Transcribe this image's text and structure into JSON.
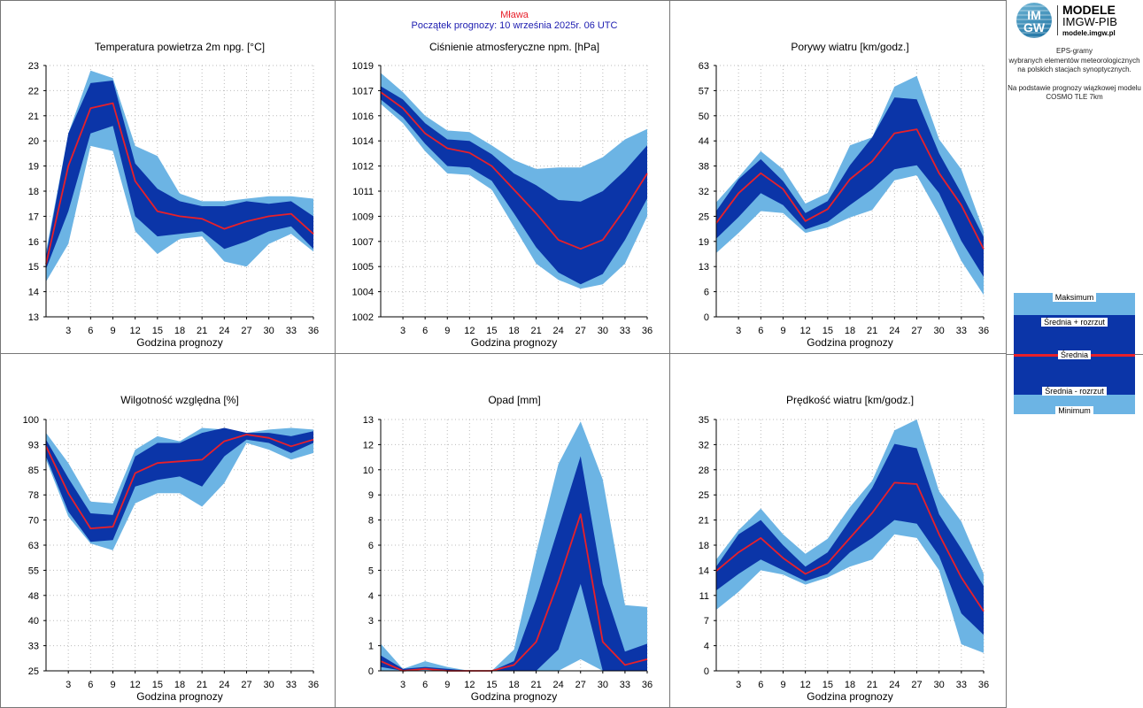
{
  "header": {
    "station": "Mława",
    "forecast_start": "Początek prognozy: 10 września 2025r. 06 UTC"
  },
  "logo": {
    "badge_top": "IM",
    "badge_bottom": "GW",
    "name_line1": "MODELE",
    "name_line2": "IMGW-PIB",
    "url": "modele.imgw.pl"
  },
  "info": {
    "line1": "EPS-gramy",
    "line2": "wybranych elementów meteorologicznych",
    "line3": "na polskich stacjach  synoptycznych.",
    "line4": "Na podstawie prognozy wiązkowej modelu",
    "line5": "COSMO TLE 7km"
  },
  "legend": {
    "max": "Maksimum",
    "mean_plus": "Średnia + rozrzut",
    "mean": "Średnia",
    "mean_minus": "Średnia - rozrzut",
    "min": "Minimum"
  },
  "colors": {
    "outer_band": "#6cb4e4",
    "inner_band": "#0b35a8",
    "mean_line": "#e8202a",
    "station_title": "#e8202a",
    "subtitle": "#1c1cb0",
    "grid": "#bbbbbb"
  },
  "chart_data": [
    {
      "type": "area",
      "title": "Temperatura powietrza 2m npg. [°C]",
      "xlabel": "Godzina prognozy",
      "x": [
        0,
        3,
        6,
        9,
        12,
        15,
        18,
        21,
        24,
        27,
        30,
        33,
        36
      ],
      "xticks": [
        "3",
        "6",
        "9",
        "12",
        "15",
        "18",
        "21",
        "24",
        "27",
        "30",
        "33",
        "36"
      ],
      "ylim": [
        13,
        23
      ],
      "yticks": [
        "13",
        "14",
        "15",
        "16",
        "17",
        "18",
        "19",
        "20",
        "21",
        "22",
        "23"
      ],
      "grid": true,
      "series": {
        "min": [
          14.4,
          15.9,
          19.8,
          19.6,
          16.4,
          15.5,
          16.1,
          16.2,
          15.2,
          15.0,
          15.9,
          16.3,
          15.6
        ],
        "mean_minus": [
          14.9,
          17.2,
          20.3,
          20.6,
          17.0,
          16.2,
          16.3,
          16.4,
          15.7,
          16.0,
          16.4,
          16.6,
          15.7
        ],
        "mean": [
          15.1,
          19.0,
          21.3,
          21.5,
          18.4,
          17.2,
          17.0,
          16.9,
          16.5,
          16.8,
          17.0,
          17.1,
          16.3
        ],
        "mean_plus": [
          15.4,
          20.3,
          22.3,
          22.4,
          19.1,
          18.1,
          17.6,
          17.4,
          17.4,
          17.6,
          17.5,
          17.6,
          17.0
        ],
        "max": [
          15.6,
          20.3,
          22.8,
          22.5,
          19.8,
          19.4,
          17.9,
          17.6,
          17.6,
          17.7,
          17.8,
          17.8,
          17.7
        ]
      }
    },
    {
      "type": "area",
      "title": "Ciśnienie atmosferyczne npm. [hPa]",
      "xlabel": "Godzina prognozy",
      "x": [
        0,
        3,
        6,
        9,
        12,
        15,
        18,
        21,
        24,
        27,
        30,
        33,
        36
      ],
      "xticks": [
        "3",
        "6",
        "9",
        "12",
        "15",
        "18",
        "21",
        "24",
        "27",
        "30",
        "33",
        "36"
      ],
      "ylim": [
        1002,
        1019
      ],
      "yticks": [
        "1002",
        "1004",
        "1005",
        "1007",
        "1009",
        "1011",
        "1012",
        "1014",
        "1016",
        "1017",
        "1019"
      ],
      "grid": true,
      "series": {
        "min": [
          1016.4,
          1015.1,
          1013.2,
          1011.7,
          1011.6,
          1010.6,
          1008.1,
          1005.6,
          1004.5,
          1003.9,
          1004.2,
          1005.6,
          1008.8
        ],
        "mean_minus": [
          1016.7,
          1015.5,
          1013.7,
          1012.2,
          1012.1,
          1011.2,
          1009.0,
          1006.7,
          1005.0,
          1004.2,
          1004.9,
          1007.2,
          1010.0
        ],
        "mean": [
          1017.2,
          1016.1,
          1014.4,
          1013.4,
          1013.1,
          1012.2,
          1010.6,
          1009.0,
          1007.2,
          1006.6,
          1007.2,
          1009.3,
          1011.7
        ],
        "mean_plus": [
          1017.6,
          1016.7,
          1015.1,
          1014.0,
          1013.9,
          1013.0,
          1011.7,
          1010.9,
          1009.9,
          1009.8,
          1010.5,
          1011.9,
          1013.6
        ],
        "max": [
          1018.5,
          1017.2,
          1015.6,
          1014.6,
          1014.5,
          1013.6,
          1012.6,
          1012.0,
          1012.1,
          1012.1,
          1012.8,
          1014.0,
          1014.7
        ]
      }
    },
    {
      "type": "area",
      "title": "Porywy wiatru [km/godz.]",
      "xlabel": "Godzina prognozy",
      "x": [
        0,
        3,
        6,
        9,
        12,
        15,
        18,
        21,
        24,
        27,
        30,
        33,
        36
      ],
      "xticks": [
        "3",
        "6",
        "9",
        "12",
        "15",
        "18",
        "21",
        "24",
        "27",
        "30",
        "33",
        "36"
      ],
      "ylim": [
        0,
        63
      ],
      "yticks": [
        "0",
        "6",
        "13",
        "19",
        "25",
        "32",
        "38",
        "44",
        "50",
        "57",
        "63"
      ],
      "grid": true,
      "series": {
        "min": [
          16.0,
          21.0,
          26.5,
          26.0,
          21.0,
          22.4,
          24.9,
          26.8,
          34.2,
          35.5,
          25.5,
          14.0,
          5.5
        ],
        "mean_minus": [
          19.6,
          25.0,
          31.0,
          28.0,
          21.9,
          23.8,
          28.0,
          32.0,
          37.0,
          38.0,
          31.0,
          19.0,
          10.0
        ],
        "mean": [
          23.5,
          31.0,
          36.0,
          32.0,
          24.0,
          27.0,
          34.5,
          39.0,
          46.0,
          47.0,
          36.0,
          28.0,
          17.0
        ],
        "mean_plus": [
          26.5,
          34.5,
          39.5,
          34.0,
          26.0,
          29.0,
          38.0,
          45.0,
          55.0,
          54.5,
          41.0,
          31.0,
          20.0
        ],
        "max": [
          28.7,
          35.0,
          41.5,
          37.0,
          28.4,
          31.0,
          43.0,
          45.0,
          57.7,
          60.4,
          44.5,
          37.0,
          21.5
        ]
      }
    },
    {
      "type": "area",
      "title": "Wilgotność względna [%]",
      "xlabel": "Godzina prognozy",
      "x": [
        0,
        3,
        6,
        9,
        12,
        15,
        18,
        21,
        24,
        27,
        30,
        33,
        36
      ],
      "xticks": [
        "3",
        "6",
        "9",
        "12",
        "15",
        "18",
        "21",
        "24",
        "27",
        "30",
        "33",
        "36"
      ],
      "ylim": [
        25,
        100
      ],
      "yticks": [
        "25",
        "33",
        "40",
        "48",
        "55",
        "63",
        "70",
        "78",
        "85",
        "93",
        "100"
      ],
      "grid": true,
      "series": {
        "min": [
          88.0,
          71.0,
          63.0,
          61.0,
          75.0,
          78.0,
          78.0,
          74.0,
          81.0,
          93.0,
          91.0,
          88.0,
          90.0
        ],
        "mean_minus": [
          89.0,
          72.5,
          63.5,
          64.0,
          80.0,
          82.0,
          83.0,
          80.0,
          89.0,
          94.0,
          93.0,
          90.0,
          93.0
        ],
        "mean": [
          92.0,
          78.0,
          67.5,
          68.0,
          84.0,
          87.0,
          87.5,
          88.0,
          93.5,
          95.5,
          94.5,
          92.0,
          94.0
        ],
        "mean_plus": [
          94.0,
          82.5,
          72.0,
          71.5,
          89.0,
          93.0,
          93.0,
          96.0,
          97.5,
          96.0,
          96.0,
          95.0,
          96.5
        ],
        "max": [
          96.0,
          87.0,
          75.5,
          75.0,
          91.0,
          95.0,
          93.5,
          97.5,
          97.0,
          96.0,
          97.0,
          97.5,
          97.0
        ]
      }
    },
    {
      "type": "area",
      "title": "Opad [mm]",
      "xlabel": "Godzina prognozy",
      "x": [
        0,
        3,
        6,
        9,
        12,
        15,
        18,
        21,
        24,
        27,
        30,
        33,
        36
      ],
      "xticks": [
        "3",
        "6",
        "9",
        "12",
        "15",
        "18",
        "21",
        "24",
        "27",
        "30",
        "33",
        "36"
      ],
      "ylim": [
        0,
        13
      ],
      "yticks": [
        "0",
        "1",
        "3",
        "4",
        "5",
        "6",
        "8",
        "9",
        "10",
        "12",
        "13"
      ],
      "grid": true,
      "series": {
        "min": [
          0.0,
          0.0,
          0.0,
          0.0,
          0.0,
          0.0,
          0.0,
          0.0,
          0.0,
          0.6,
          0.0,
          0.0,
          0.0
        ],
        "mean_minus": [
          0.2,
          0.0,
          0.1,
          0.0,
          0.0,
          0.0,
          0.0,
          0.0,
          1.1,
          4.5,
          0.0,
          0.0,
          0.0
        ],
        "mean": [
          0.5,
          0.0,
          0.1,
          0.0,
          0.0,
          0.0,
          0.3,
          1.5,
          4.6,
          8.1,
          1.5,
          0.3,
          0.6
        ],
        "mean_plus": [
          0.8,
          0.1,
          0.2,
          0.1,
          0.0,
          0.0,
          0.5,
          3.7,
          7.4,
          11.1,
          4.5,
          1.0,
          1.4
        ],
        "max": [
          1.4,
          0.1,
          0.5,
          0.2,
          0.0,
          0.0,
          1.1,
          6.1,
          10.7,
          12.9,
          9.9,
          3.4,
          3.3
        ]
      }
    },
    {
      "type": "area",
      "title": "Prędkość wiatru [km/godz.]",
      "xlabel": "Godzina prognozy",
      "x": [
        0,
        3,
        6,
        9,
        12,
        15,
        18,
        21,
        24,
        27,
        30,
        33,
        36
      ],
      "xticks": [
        "3",
        "6",
        "9",
        "12",
        "15",
        "18",
        "21",
        "24",
        "27",
        "30",
        "33",
        "36"
      ],
      "ylim": [
        0,
        35
      ],
      "yticks": [
        "0",
        "4",
        "7",
        "11",
        "14",
        "18",
        "21",
        "25",
        "28",
        "32",
        "35"
      ],
      "grid": true,
      "series": {
        "min": [
          8.5,
          11.0,
          14.0,
          13.4,
          12.0,
          13.0,
          14.5,
          15.5,
          19.0,
          18.5,
          14.0,
          3.7,
          2.5
        ],
        "mean_minus": [
          11.2,
          13.5,
          15.5,
          14.0,
          12.5,
          13.5,
          16.5,
          18.5,
          21.0,
          20.5,
          16.0,
          8.0,
          5.0
        ],
        "mean": [
          13.9,
          16.5,
          18.5,
          15.7,
          13.5,
          15.0,
          18.5,
          22.0,
          26.2,
          26.0,
          19.0,
          13.0,
          8.3
        ],
        "mean_plus": [
          14.5,
          19.0,
          21.0,
          17.5,
          14.5,
          16.5,
          21.0,
          25.5,
          31.6,
          31.0,
          21.8,
          17.0,
          11.8
        ],
        "max": [
          15.5,
          19.6,
          22.6,
          19.0,
          16.3,
          18.4,
          22.8,
          26.5,
          33.5,
          35.0,
          25.0,
          20.8,
          13.5
        ]
      }
    }
  ]
}
